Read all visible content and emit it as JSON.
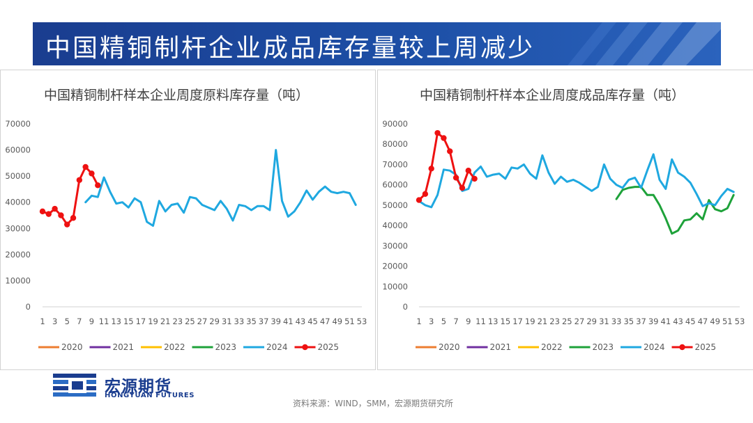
{
  "banner": {
    "title": "中国精铜制杆企业成品库存量较上周减少"
  },
  "logo": {
    "name_cn": "宏源期货",
    "name_en": "HONGYUAN FUTURES"
  },
  "source": "资料来源：WIND，SMM，宏源期货研究所",
  "colors": {
    "2020": "#ed7d31",
    "2021": "#7030a0",
    "2022": "#ffc000",
    "2023": "#1ea23a",
    "2024": "#1fa8e0",
    "2025": "#ee1111",
    "banner": "#1a3d8f"
  },
  "chart_data": [
    {
      "type": "line",
      "title": "中国精铜制杆样本企业周度原料库存量（吨）",
      "x_ticks": [
        "1",
        "3",
        "5",
        "7",
        "9",
        "11",
        "13",
        "15",
        "17",
        "19",
        "21",
        "23",
        "25",
        "27",
        "29",
        "31",
        "33",
        "35",
        "37",
        "39",
        "41",
        "43",
        "45",
        "47",
        "49",
        "51",
        "53"
      ],
      "y_ticks": [
        "0",
        "10000",
        "20000",
        "30000",
        "40000",
        "50000",
        "60000",
        "70000"
      ],
      "ylim": [
        0,
        70000
      ],
      "xlim": [
        1,
        53
      ],
      "legend": [
        "2020",
        "2021",
        "2022",
        "2023",
        "2024",
        "2025"
      ],
      "legend_position": "bottom",
      "grid": false,
      "series": [
        {
          "name": "2020",
          "points": []
        },
        {
          "name": "2021",
          "points": []
        },
        {
          "name": "2022",
          "points": []
        },
        {
          "name": "2023",
          "points": []
        },
        {
          "name": "2024",
          "markers": false,
          "points": [
            [
              8,
              40000
            ],
            [
              9,
              42500
            ],
            [
              10,
              42000
            ],
            [
              11,
              49500
            ],
            [
              12,
              44000
            ],
            [
              13,
              39500
            ],
            [
              14,
              40000
            ],
            [
              15,
              38000
            ],
            [
              16,
              41500
            ],
            [
              17,
              40000
            ],
            [
              18,
              32500
            ],
            [
              19,
              31000
            ],
            [
              20,
              40500
            ],
            [
              21,
              36500
            ],
            [
              22,
              39000
            ],
            [
              23,
              39500
            ],
            [
              24,
              36000
            ],
            [
              25,
              42000
            ],
            [
              26,
              41500
            ],
            [
              27,
              39000
            ],
            [
              28,
              38000
            ],
            [
              29,
              37000
            ],
            [
              30,
              40500
            ],
            [
              31,
              37500
            ],
            [
              32,
              33000
            ],
            [
              33,
              39000
            ],
            [
              34,
              38500
            ],
            [
              35,
              37000
            ],
            [
              36,
              38500
            ],
            [
              37,
              38500
            ],
            [
              38,
              37000
            ],
            [
              39,
              60000
            ],
            [
              40,
              40500
            ],
            [
              41,
              34500
            ],
            [
              42,
              36500
            ],
            [
              43,
              40000
            ],
            [
              44,
              44500
            ],
            [
              45,
              41000
            ],
            [
              46,
              44000
            ],
            [
              47,
              46000
            ],
            [
              48,
              44000
            ],
            [
              49,
              43500
            ],
            [
              50,
              44000
            ],
            [
              51,
              43500
            ],
            [
              52,
              39000
            ]
          ]
        },
        {
          "name": "2025",
          "markers": true,
          "points": [
            [
              1,
              36500
            ],
            [
              2,
              35500
            ],
            [
              3,
              37500
            ],
            [
              4,
              35000
            ],
            [
              5,
              31500
            ],
            [
              6,
              34000
            ],
            [
              7,
              48500
            ],
            [
              8,
              53500
            ],
            [
              9,
              51000
            ],
            [
              10,
              46500
            ]
          ]
        }
      ]
    },
    {
      "type": "line",
      "title": "中国精铜制杆样本企业周度成品库存量（吨）",
      "x_ticks": [
        "1",
        "3",
        "5",
        "7",
        "9",
        "11",
        "13",
        "15",
        "17",
        "19",
        "21",
        "23",
        "25",
        "27",
        "29",
        "31",
        "33",
        "35",
        "37",
        "39",
        "41",
        "43",
        "45",
        "47",
        "49",
        "51",
        "53"
      ],
      "y_ticks": [
        "0",
        "10000",
        "20000",
        "30000",
        "40000",
        "50000",
        "60000",
        "70000",
        "80000",
        "90000"
      ],
      "ylim": [
        0,
        90000
      ],
      "xlim": [
        1,
        53
      ],
      "legend": [
        "2020",
        "2021",
        "2022",
        "2023",
        "2024",
        "2025"
      ],
      "legend_position": "bottom",
      "grid": false,
      "series": [
        {
          "name": "2020",
          "points": []
        },
        {
          "name": "2021",
          "points": []
        },
        {
          "name": "2022",
          "points": []
        },
        {
          "name": "2023",
          "markers": false,
          "points": [
            [
              33,
              53000
            ],
            [
              34,
              57500
            ],
            [
              35,
              58500
            ],
            [
              36,
              59000
            ],
            [
              37,
              59000
            ],
            [
              38,
              55000
            ],
            [
              39,
              55000
            ],
            [
              40,
              50000
            ],
            [
              41,
              43500
            ],
            [
              42,
              36000
            ],
            [
              43,
              37500
            ],
            [
              44,
              42500
            ],
            [
              45,
              43000
            ],
            [
              46,
              46000
            ],
            [
              47,
              43000
            ],
            [
              48,
              52500
            ],
            [
              49,
              48000
            ],
            [
              50,
              47000
            ],
            [
              51,
              48500
            ],
            [
              52,
              55000
            ]
          ]
        },
        {
          "name": "2024",
          "markers": false,
          "points": [
            [
              1,
              52000
            ],
            [
              2,
              50000
            ],
            [
              3,
              49000
            ],
            [
              4,
              55000
            ],
            [
              5,
              67500
            ],
            [
              6,
              67000
            ],
            [
              7,
              65000
            ],
            [
              8,
              57000
            ],
            [
              9,
              58000
            ],
            [
              10,
              66000
            ],
            [
              11,
              69000
            ],
            [
              12,
              64000
            ],
            [
              13,
              65000
            ],
            [
              14,
              65500
            ],
            [
              15,
              63000
            ],
            [
              16,
              68500
            ],
            [
              17,
              68000
            ],
            [
              18,
              70000
            ],
            [
              19,
              65500
            ],
            [
              20,
              63000
            ],
            [
              21,
              74500
            ],
            [
              22,
              66000
            ],
            [
              23,
              60500
            ],
            [
              24,
              64000
            ],
            [
              25,
              61500
            ],
            [
              26,
              62500
            ],
            [
              27,
              61000
            ],
            [
              28,
              59000
            ],
            [
              29,
              57000
            ],
            [
              30,
              59000
            ],
            [
              31,
              70000
            ],
            [
              32,
              63000
            ],
            [
              33,
              60000
            ],
            [
              34,
              58500
            ],
            [
              35,
              62500
            ],
            [
              36,
              63500
            ],
            [
              37,
              58500
            ],
            [
              38,
              67000
            ],
            [
              39,
              75000
            ],
            [
              40,
              62500
            ],
            [
              41,
              58000
            ],
            [
              42,
              72500
            ],
            [
              43,
              66000
            ],
            [
              44,
              64000
            ],
            [
              45,
              61000
            ],
            [
              46,
              55500
            ],
            [
              47,
              49500
            ],
            [
              48,
              51000
            ],
            [
              49,
              50000
            ],
            [
              50,
              54500
            ],
            [
              51,
              58000
            ],
            [
              52,
              56500
            ]
          ]
        },
        {
          "name": "2025",
          "markers": true,
          "points": [
            [
              1,
              52500
            ],
            [
              2,
              55500
            ],
            [
              3,
              68000
            ],
            [
              4,
              85500
            ],
            [
              5,
              83000
            ],
            [
              6,
              76500
            ],
            [
              7,
              63500
            ],
            [
              8,
              58500
            ],
            [
              9,
              67000
            ],
            [
              10,
              63000
            ]
          ]
        }
      ]
    }
  ]
}
